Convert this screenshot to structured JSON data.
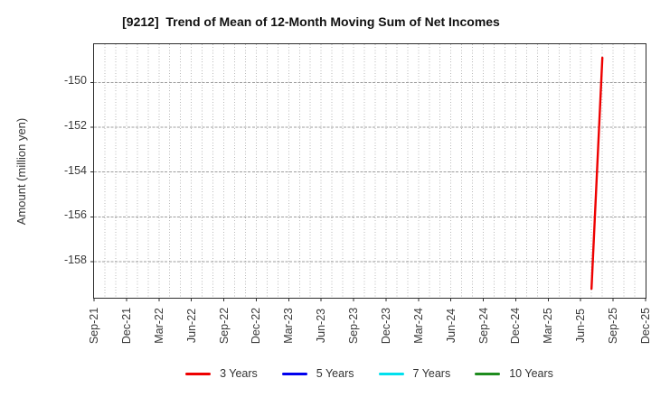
{
  "figure": {
    "background": "#ffffff"
  },
  "chart_data": {
    "type": "line",
    "title": "[9212]  Trend of Mean of 12-Month Moving Sum of Net Incomes",
    "ylabel": "Amount (million yen)",
    "xlabel": "",
    "x_tick_labels": [
      "Sep-21",
      "Dec-21",
      "Mar-22",
      "Jun-22",
      "Sep-22",
      "Dec-22",
      "Mar-23",
      "Jun-23",
      "Sep-23",
      "Dec-23",
      "Mar-24",
      "Jun-24",
      "Sep-24",
      "Dec-24",
      "Mar-25",
      "Jun-25",
      "Sep-25",
      "Dec-25"
    ],
    "x_total_months": 51,
    "x_months_per_tick": 3,
    "y_ticks": [
      -150,
      -152,
      -154,
      -156,
      -158
    ],
    "ylim": [
      -159.6,
      -148.3
    ],
    "grid": {
      "vertical": "monthly dotted",
      "horizontal": "dashed at y ticks"
    },
    "legend_position": "bottom center",
    "series": [
      {
        "name": "3 Years",
        "color": "#ee0000",
        "points": [
          {
            "x": "Jul-25",
            "month": 46,
            "y": -159.2
          },
          {
            "x": "Aug-25",
            "month": 47,
            "y": -148.9
          }
        ]
      },
      {
        "name": "5 Years",
        "color": "#0000ee",
        "points": []
      },
      {
        "name": "7 Years",
        "color": "#00e0ee",
        "points": []
      },
      {
        "name": "10 Years",
        "color": "#1e8c1e",
        "points": []
      }
    ],
    "colors": {
      "grid_vertical": "#bababa",
      "grid_horizontal": "#9d9d9d",
      "axis_border": "#2e2e2e",
      "tick_text": "#3a3a3a",
      "title_text": "#111111"
    }
  }
}
